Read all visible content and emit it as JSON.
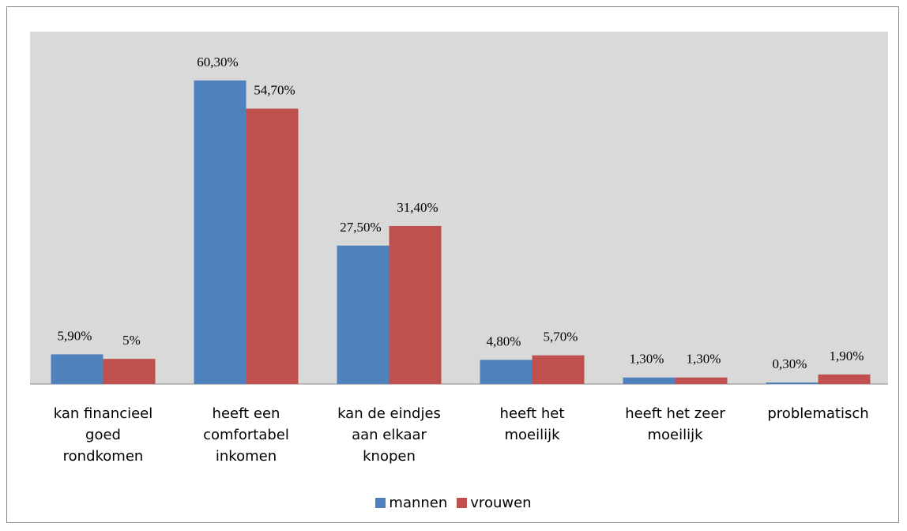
{
  "chart_data": {
    "type": "bar",
    "categories": [
      "kan financieel goed rondkomen",
      "heeft een comfortabel inkomen",
      "kan de eindjes aan elkaar knopen",
      "heeft het moeilijk",
      "heeft het zeer moeilijk",
      "problematisch"
    ],
    "series": [
      {
        "name": "mannen",
        "color": "#4f81bd",
        "values": [
          5.9,
          60.3,
          27.5,
          4.8,
          1.3,
          0.3
        ],
        "value_labels": [
          "5,90%",
          "60,30%",
          "27,50%",
          "4,80%",
          "1,30%",
          "0,30%"
        ]
      },
      {
        "name": "vrouwen",
        "color": "#c0504d",
        "values": [
          5,
          54.7,
          31.4,
          5.7,
          1.3,
          1.9
        ],
        "value_labels": [
          "5%",
          "54,70%",
          "31,40%",
          "5,70%",
          "1,30%",
          "1,90%"
        ]
      }
    ],
    "ylim": [
      0,
      70
    ],
    "legend": "bottom"
  }
}
